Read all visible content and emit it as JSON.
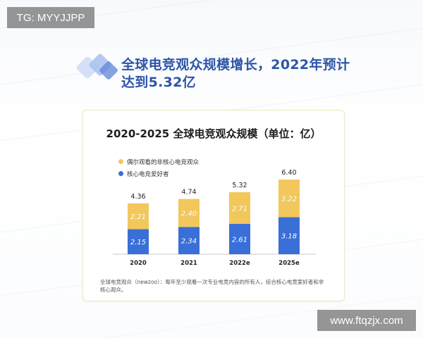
{
  "watermarks": {
    "top": "TG: MYYJJPP",
    "bottom": "www.ftqzjx.com"
  },
  "headline": {
    "line1": "全球电竞观众规模增长，2022年预计",
    "line2": "达到5.32亿"
  },
  "colors": {
    "casual": "#f2c75c",
    "core": "#3a6fd8",
    "headline": "#2d55a8",
    "card_border": "#e9ecbf"
  },
  "chart_data": {
    "type": "bar",
    "stacked": true,
    "title": "2020-2025 全球电竞观众规模（单位：亿）",
    "categories": [
      "2020",
      "2021",
      "2022e",
      "2025e"
    ],
    "series": [
      {
        "name": "核心电竞爱好者",
        "values": [
          2.15,
          2.34,
          2.61,
          3.18
        ]
      },
      {
        "name": "偶尔观看的非核心电竞观众",
        "values": [
          2.21,
          2.4,
          2.71,
          3.22
        ]
      }
    ],
    "totals": [
      4.36,
      4.74,
      5.32,
      6.4
    ],
    "legend": [
      "偶尔观看的非核心电竞观众",
      "核心电竞爱好者"
    ],
    "legend_position": "top-left",
    "ylim": [
      0,
      6.4
    ],
    "grid": false,
    "xlabel": "",
    "ylabel": "",
    "footnote": "全球电竞观众（newzoo）：每年至少观看一次专业电竞内容的所有人，综合核心电竞爱好者和非核心观众。"
  }
}
